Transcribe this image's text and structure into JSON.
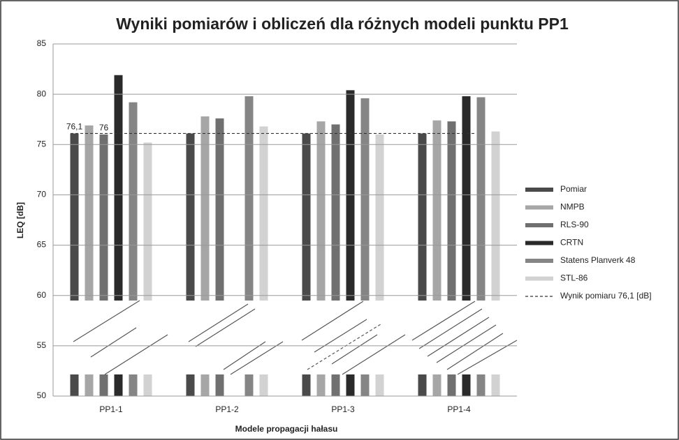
{
  "chart_data": {
    "type": "bar",
    "title": "Wyniki pomiarów i obliczeń dla różnych modeli punktu PP1",
    "x_label": "Modele propagacji hałasu",
    "y_label": "LEQ [dB]",
    "categories": [
      "PP1-1",
      "PP1-2",
      "PP1-3",
      "PP1-4"
    ],
    "series": [
      {
        "name": "Pomiar",
        "color": "#4a4a4a",
        "values": [
          76.1,
          76.1,
          76.1,
          76.1
        ],
        "value_labels": [
          "76,1",
          null,
          null,
          null
        ]
      },
      {
        "name": "NMPB",
        "color": "#a6a6a6",
        "values": [
          76.9,
          77.8,
          77.3,
          77.4
        ]
      },
      {
        "name": "RLS-90",
        "color": "#707070",
        "values": [
          76,
          77.6,
          77.0,
          77.3
        ],
        "value_labels": [
          "76",
          null,
          null,
          null
        ]
      },
      {
        "name": "CRTN",
        "color": "#2a2a2a",
        "values": [
          81.9,
          null,
          80.4,
          79.8
        ]
      },
      {
        "name": "Statens Planverk 48",
        "color": "#858585",
        "values": [
          79.2,
          79.8,
          79.6,
          79.7
        ]
      },
      {
        "name": "STL-86",
        "color": "#d2d2d2",
        "values": [
          75.2,
          76.8,
          76.0,
          76.3
        ]
      }
    ],
    "reference": {
      "name": "Wynik pomiaru 76,1 [dB]",
      "value": 76.1,
      "color": "#333333"
    },
    "ylim": [
      50,
      85
    ],
    "yticks": [
      50,
      55,
      60,
      65,
      70,
      75,
      80,
      85
    ],
    "grid": true,
    "legend": "right"
  }
}
